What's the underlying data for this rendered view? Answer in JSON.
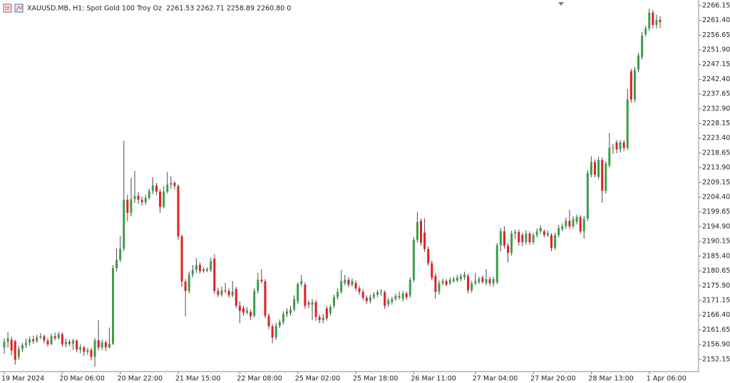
{
  "chart_data": {
    "type": "candlestick",
    "title": "XAUUSD.MB, H1:  Spot Gold 100 Troy Oz",
    "readout": "2261.53 2262.71 2258.89 2260.80  0",
    "up_color": "#3c9e48",
    "down_color": "#e31e24",
    "wick_color": "#4a4a4a",
    "grid": false,
    "ylim": [
      2148.2,
      2267.5
    ],
    "yticks": [
      2266.15,
      {
        "value": 2261.4,
        "label": "2261.40"
      },
      2256.65,
      {
        "value": 2251.9,
        "label": "2251.90"
      },
      2247.15,
      {
        "value": 2242.4,
        "label": "2242.40"
      },
      2237.65,
      {
        "value": 2232.9,
        "label": "2232.90"
      },
      2228.15,
      {
        "value": 2223.4,
        "label": "2223.40"
      },
      2218.65,
      {
        "value": 2213.9,
        "label": "2213.90"
      },
      2209.15,
      {
        "value": 2204.4,
        "label": "2204.40"
      },
      2199.65,
      {
        "value": 2194.9,
        "label": "2194.90"
      },
      2190.15,
      {
        "value": 2185.4,
        "label": "2185.40"
      },
      2180.65,
      {
        "value": 2175.9,
        "label": "2175.90"
      },
      2171.15,
      {
        "value": 2166.4,
        "label": "2166.40"
      },
      2161.65,
      {
        "value": 2156.9,
        "label": "2156.90"
      },
      2152.15
    ],
    "categories": [
      "19 Mar 2024",
      null,
      null,
      null,
      null,
      null,
      null,
      null,
      null,
      null,
      null,
      null,
      null,
      null,
      null,
      null,
      "20 Mar 06:00",
      null,
      null,
      null,
      null,
      null,
      null,
      null,
      null,
      null,
      null,
      null,
      null,
      null,
      null,
      null,
      "20 Mar 22:00",
      null,
      null,
      null,
      null,
      null,
      null,
      null,
      null,
      null,
      null,
      null,
      null,
      null,
      null,
      null,
      "21 Mar 15:00",
      null,
      null,
      null,
      null,
      null,
      null,
      null,
      null,
      null,
      null,
      null,
      null,
      null,
      null,
      null,
      null,
      "22 Mar 08:00",
      null,
      null,
      null,
      null,
      null,
      null,
      null,
      null,
      null,
      null,
      null,
      null,
      null,
      null,
      null,
      "25 Mar 02:00",
      null,
      null,
      null,
      null,
      null,
      null,
      null,
      null,
      null,
      null,
      null,
      null,
      null,
      null,
      null,
      "25 Mar 18:00",
      null,
      null,
      null,
      null,
      null,
      null,
      null,
      null,
      null,
      null,
      null,
      null,
      null,
      null,
      null,
      "26 Mar 11:00",
      null,
      null,
      null,
      null,
      null,
      null,
      null,
      null,
      null,
      null,
      null,
      null,
      null,
      null,
      null,
      null,
      "27 Mar 04:00",
      null,
      null,
      null,
      null,
      null,
      null,
      null,
      null,
      null,
      null,
      null,
      null,
      null,
      null,
      null,
      "27 Mar 20:00",
      null,
      null,
      null,
      null,
      null,
      null,
      null,
      null,
      null,
      null,
      null,
      null,
      null,
      null,
      null,
      "28 Mar 13:00",
      null,
      null,
      null,
      null,
      null,
      null,
      null,
      null,
      null,
      null,
      null,
      null,
      null,
      null,
      null,
      "1 Apr 06:00",
      null,
      null,
      null
    ],
    "ohlc": [
      [
        2156.0,
        2159.0,
        2154.0,
        2157.8
      ],
      [
        2157.8,
        2161.0,
        2156.0,
        2158.9
      ],
      [
        2158.5,
        2159.5,
        2153.5,
        2155.0
      ],
      [
        2158.0,
        2158.5,
        2150.5,
        2152.0
      ],
      [
        2153.0,
        2156.5,
        2152.0,
        2155.5
      ],
      [
        2155.5,
        2157.5,
        2154.5,
        2156.8
      ],
      [
        2156.8,
        2158.8,
        2155.8,
        2157.5
      ],
      [
        2157.5,
        2159.5,
        2156.5,
        2158.6
      ],
      [
        2158.6,
        2159.8,
        2157.2,
        2158.0
      ],
      [
        2158.0,
        2160.0,
        2157.5,
        2159.2
      ],
      [
        2159.2,
        2160.6,
        2158.6,
        2159.6
      ],
      [
        2159.6,
        2160.2,
        2157.3,
        2158.2
      ],
      [
        2158.2,
        2159.0,
        2156.2,
        2157.0
      ],
      [
        2157.0,
        2160.4,
        2156.8,
        2159.6
      ],
      [
        2159.6,
        2160.8,
        2158.2,
        2159.0
      ],
      [
        2159.0,
        2161.0,
        2158.5,
        2160.3
      ],
      [
        2160.3,
        2160.8,
        2156.2,
        2157.0
      ],
      [
        2157.0,
        2158.8,
        2156.0,
        2157.8
      ],
      [
        2157.8,
        2158.5,
        2156.5,
        2157.2
      ],
      [
        2157.2,
        2158.8,
        2155.2,
        2158.2
      ],
      [
        2158.2,
        2158.6,
        2154.4,
        2155.3
      ],
      [
        2155.3,
        2157.0,
        2154.2,
        2156.0
      ],
      [
        2156.0,
        2156.5,
        2153.2,
        2154.6
      ],
      [
        2154.6,
        2155.9,
        2153.6,
        2155.2
      ],
      [
        2155.2,
        2155.8,
        2151.8,
        2153.0
      ],
      [
        2153.0,
        2159.0,
        2149.8,
        2158.3
      ],
      [
        2158.3,
        2164.8,
        2155.0,
        2156.0
      ],
      [
        2156.0,
        2158.4,
        2155.2,
        2157.6
      ],
      [
        2157.6,
        2158.2,
        2154.8,
        2156.0
      ],
      [
        2156.0,
        2162.4,
        2155.6,
        2157.2
      ],
      [
        2157.2,
        2182.5,
        2156.8,
        2181.5
      ],
      [
        2181.5,
        2187.9,
        2180.5,
        2184.2
      ],
      [
        2184.2,
        2192.0,
        2183.5,
        2187.8
      ],
      [
        2187.8,
        2222.6,
        2187.0,
        2203.6
      ],
      [
        2203.6,
        2205.2,
        2196.6,
        2199.4
      ],
      [
        2199.4,
        2210.6,
        2198.2,
        2203.8
      ],
      [
        2203.8,
        2212.9,
        2202.6,
        2204.8
      ],
      [
        2204.8,
        2206.0,
        2202.2,
        2203.6
      ],
      [
        2203.6,
        2204.6,
        2201.8,
        2202.8
      ],
      [
        2202.8,
        2205.2,
        2201.9,
        2204.2
      ],
      [
        2204.2,
        2207.2,
        2203.6,
        2206.4
      ],
      [
        2206.4,
        2210.8,
        2205.4,
        2208.2
      ],
      [
        2208.2,
        2209.0,
        2205.0,
        2206.2
      ],
      [
        2206.2,
        2207.0,
        2199.4,
        2201.3
      ],
      [
        2201.3,
        2208.0,
        2200.8,
        2206.2
      ],
      [
        2206.2,
        2212.6,
        2205.6,
        2208.4
      ],
      [
        2208.4,
        2211.2,
        2207.2,
        2209.0
      ],
      [
        2209.0,
        2209.6,
        2207.0,
        2208.0
      ],
      [
        2208.0,
        2208.6,
        2190.6,
        2191.8
      ],
      [
        2191.8,
        2192.4,
        2175.5,
        2177.2
      ],
      [
        2177.2,
        2178.0,
        2166.0,
        2174.2
      ],
      [
        2174.2,
        2180.5,
        2173.4,
        2179.5
      ],
      [
        2179.5,
        2182.6,
        2178.6,
        2181.0
      ],
      [
        2181.0,
        2184.8,
        2180.0,
        2182.6
      ],
      [
        2182.6,
        2183.4,
        2179.8,
        2180.6
      ],
      [
        2180.6,
        2181.8,
        2180.0,
        2181.2
      ],
      [
        2181.2,
        2181.8,
        2180.2,
        2180.9
      ],
      [
        2180.9,
        2185.0,
        2180.2,
        2183.8
      ],
      [
        2184.6,
        2186.0,
        2173.2,
        2174.2
      ],
      [
        2174.2,
        2175.2,
        2172.2,
        2173.0
      ],
      [
        2173.0,
        2175.6,
        2172.4,
        2174.4
      ],
      [
        2174.4,
        2176.8,
        2173.4,
        2174.2
      ],
      [
        2174.2,
        2175.0,
        2172.0,
        2172.8
      ],
      [
        2172.8,
        2177.4,
        2172.2,
        2174.0
      ],
      [
        2174.8,
        2175.6,
        2168.6,
        2169.4
      ],
      [
        2169.4,
        2170.8,
        2163.8,
        2167.8
      ],
      [
        2168.6,
        2169.4,
        2166.2,
        2167.2
      ],
      [
        2167.2,
        2169.0,
        2166.6,
        2167.8
      ],
      [
        2167.4,
        2168.2,
        2164.8,
        2166.0
      ],
      [
        2166.2,
        2175.0,
        2165.6,
        2174.2
      ],
      [
        2174.2,
        2180.0,
        2173.4,
        2177.8
      ],
      [
        2177.8,
        2181.2,
        2176.6,
        2177.3
      ],
      [
        2177.3,
        2178.0,
        2165.4,
        2166.2
      ],
      [
        2166.2,
        2167.0,
        2161.8,
        2162.8
      ],
      [
        2162.8,
        2163.6,
        2157.4,
        2159.2
      ],
      [
        2159.2,
        2164.0,
        2158.4,
        2163.0
      ],
      [
        2163.0,
        2165.0,
        2162.2,
        2164.2
      ],
      [
        2164.2,
        2167.6,
        2163.4,
        2166.8
      ],
      [
        2166.8,
        2168.6,
        2165.8,
        2167.6
      ],
      [
        2167.0,
        2169.4,
        2166.2,
        2168.2
      ],
      [
        2168.2,
        2172.8,
        2167.6,
        2171.6
      ],
      [
        2170.8,
        2177.0,
        2170.0,
        2176.4
      ],
      [
        2176.4,
        2179.4,
        2175.6,
        2177.4
      ],
      [
        2176.2,
        2177.0,
        2168.4,
        2169.4
      ],
      [
        2170.4,
        2171.2,
        2168.6,
        2169.8
      ],
      [
        2169.8,
        2171.6,
        2164.8,
        2170.6
      ],
      [
        2170.6,
        2171.2,
        2164.6,
        2165.8
      ],
      [
        2165.8,
        2166.6,
        2163.8,
        2164.8
      ],
      [
        2164.8,
        2166.8,
        2163.8,
        2165.6
      ],
      [
        2168.6,
        2169.4,
        2164.6,
        2165.4
      ],
      [
        2167.0,
        2169.8,
        2166.2,
        2169.0
      ],
      [
        2169.4,
        2173.0,
        2168.6,
        2172.2
      ],
      [
        2172.2,
        2175.0,
        2171.4,
        2173.9
      ],
      [
        2173.9,
        2181.0,
        2173.2,
        2177.4
      ],
      [
        2176.8,
        2179.4,
        2176.0,
        2177.8
      ],
      [
        2177.8,
        2178.6,
        2175.4,
        2176.2
      ],
      [
        2176.2,
        2178.2,
        2175.6,
        2177.4
      ],
      [
        2176.8,
        2177.6,
        2174.2,
        2175.0
      ],
      [
        2175.0,
        2175.8,
        2173.0,
        2173.9
      ],
      [
        2173.9,
        2174.8,
        2171.2,
        2172.0
      ],
      [
        2172.0,
        2172.8,
        2170.0,
        2170.9
      ],
      [
        2171.0,
        2173.0,
        2170.2,
        2172.2
      ],
      [
        2172.2,
        2173.8,
        2171.6,
        2173.0
      ],
      [
        2173.0,
        2174.6,
        2172.2,
        2173.8
      ],
      [
        2173.8,
        2174.8,
        2172.6,
        2174.0
      ],
      [
        2173.8,
        2174.4,
        2168.4,
        2169.4
      ],
      [
        2169.8,
        2172.0,
        2169.0,
        2171.2
      ],
      [
        2170.6,
        2172.4,
        2169.8,
        2171.6
      ],
      [
        2171.6,
        2173.4,
        2171.0,
        2172.6
      ],
      [
        2172.6,
        2174.0,
        2171.4,
        2172.2
      ],
      [
        2171.6,
        2174.2,
        2170.8,
        2173.4
      ],
      [
        2173.4,
        2174.0,
        2171.4,
        2172.2
      ],
      [
        2172.8,
        2178.6,
        2172.0,
        2177.8
      ],
      [
        2177.8,
        2191.6,
        2177.0,
        2190.6
      ],
      [
        2190.6,
        2199.6,
        2189.8,
        2196.4
      ],
      [
        2196.8,
        2197.6,
        2188.8,
        2189.8
      ],
      [
        2193.0,
        2197.6,
        2186.8,
        2187.7
      ],
      [
        2187.7,
        2188.6,
        2182.2,
        2183.1
      ],
      [
        2183.1,
        2184.0,
        2177.6,
        2178.5
      ],
      [
        2179.0,
        2180.0,
        2171.7,
        2173.9
      ],
      [
        2173.9,
        2177.6,
        2173.0,
        2176.7
      ],
      [
        2176.7,
        2178.2,
        2176.0,
        2177.4
      ],
      [
        2177.4,
        2178.0,
        2175.6,
        2176.2
      ],
      [
        2176.7,
        2178.6,
        2176.0,
        2177.8
      ],
      [
        2177.4,
        2178.8,
        2176.8,
        2178.0
      ],
      [
        2177.6,
        2179.4,
        2177.0,
        2178.5
      ],
      [
        2178.0,
        2179.8,
        2177.4,
        2179.0
      ],
      [
        2178.6,
        2180.4,
        2177.8,
        2179.4
      ],
      [
        2179.0,
        2179.8,
        2173.4,
        2174.4
      ],
      [
        2174.4,
        2177.4,
        2173.6,
        2176.6
      ],
      [
        2176.6,
        2180.0,
        2176.0,
        2177.4
      ],
      [
        2177.1,
        2178.8,
        2176.4,
        2178.0
      ],
      [
        2178.5,
        2179.2,
        2176.4,
        2177.1
      ],
      [
        2176.7,
        2181.2,
        2176.0,
        2178.0
      ],
      [
        2178.0,
        2178.8,
        2175.8,
        2176.7
      ],
      [
        2176.7,
        2178.8,
        2175.6,
        2178.0
      ],
      [
        2177.0,
        2189.6,
        2176.4,
        2188.9
      ],
      [
        2188.9,
        2194.4,
        2187.0,
        2193.4
      ],
      [
        2193.4,
        2195.0,
        2187.8,
        2188.8
      ],
      [
        2188.8,
        2189.6,
        2183.4,
        2186.5
      ],
      [
        2186.5,
        2193.6,
        2185.6,
        2192.7
      ],
      [
        2192.7,
        2194.0,
        2191.0,
        2193.2
      ],
      [
        2193.2,
        2194.0,
        2188.8,
        2189.9
      ],
      [
        2192.2,
        2193.0,
        2188.6,
        2189.9
      ],
      [
        2189.9,
        2193.8,
        2189.0,
        2192.7
      ],
      [
        2192.7,
        2193.4,
        2189.0,
        2189.9
      ],
      [
        2189.9,
        2193.0,
        2189.2,
        2192.2
      ],
      [
        2192.2,
        2194.4,
        2191.4,
        2193.4
      ],
      [
        2193.4,
        2195.4,
        2192.6,
        2194.5
      ],
      [
        2193.4,
        2194.0,
        2191.4,
        2192.2
      ],
      [
        2192.2,
        2193.6,
        2191.6,
        2192.7
      ],
      [
        2192.2,
        2192.8,
        2187.0,
        2188.1
      ],
      [
        2188.1,
        2193.0,
        2187.4,
        2192.2
      ],
      [
        2192.2,
        2195.4,
        2191.4,
        2194.5
      ],
      [
        2194.1,
        2196.0,
        2193.4,
        2195.0
      ],
      [
        2195.0,
        2197.8,
        2194.2,
        2196.8
      ],
      [
        2196.8,
        2200.3,
        2194.2,
        2195.0
      ],
      [
        2195.0,
        2198.2,
        2194.4,
        2197.3
      ],
      [
        2196.4,
        2198.8,
        2195.6,
        2198.0
      ],
      [
        2198.0,
        2198.6,
        2192.6,
        2193.4
      ],
      [
        2193.4,
        2198.4,
        2191.0,
        2197.5
      ],
      [
        2197.5,
        2213.2,
        2196.6,
        2212.2
      ],
      [
        2211.7,
        2217.6,
        2210.8,
        2215.7
      ],
      [
        2215.7,
        2216.6,
        2210.8,
        2211.7
      ],
      [
        2211.0,
        2217.4,
        2210.2,
        2216.4
      ],
      [
        2216.4,
        2217.2,
        2202.6,
        2206.5
      ],
      [
        2206.5,
        2216.0,
        2205.6,
        2215.2
      ],
      [
        2214.7,
        2225.1,
        2214.0,
        2220.3
      ],
      [
        2220.3,
        2221.6,
        2218.4,
        2220.5
      ],
      [
        2222.1,
        2222.8,
        2218.6,
        2219.8
      ],
      [
        2219.8,
        2222.8,
        2218.8,
        2222.1
      ],
      [
        2222.1,
        2222.8,
        2219.2,
        2220.3
      ],
      [
        2220.3,
        2239.3,
        2219.6,
        2235.9
      ],
      [
        2245.0,
        2245.8,
        2234.8,
        2235.9
      ],
      [
        2235.9,
        2246.4,
        2235.0,
        2245.5
      ],
      [
        2245.5,
        2251.0,
        2244.6,
        2250.1
      ],
      [
        2249.6,
        2257.6,
        2248.8,
        2256.5
      ],
      [
        2257.0,
        2259.6,
        2256.2,
        2258.8
      ],
      [
        2258.8,
        2265.2,
        2258.0,
        2263.9
      ],
      [
        2263.9,
        2264.8,
        2258.8,
        2259.9
      ],
      [
        2259.9,
        2263.2,
        2258.8,
        2261.53
      ],
      [
        2261.53,
        2262.71,
        2258.89,
        2260.8
      ]
    ]
  }
}
